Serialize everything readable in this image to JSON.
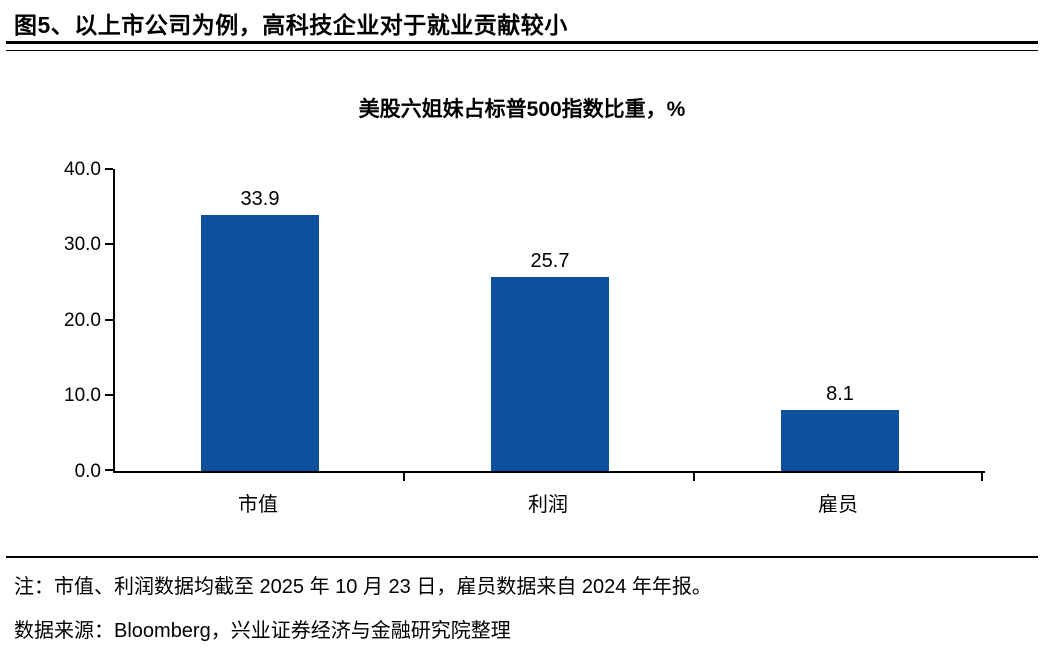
{
  "page": {
    "title": "图5、以上市公司为例，高科技企业对于就业贡献较小",
    "note": "注：市值、利润数据均截至 2025 年 10 月 23 日，雇员数据来自 2024 年年报。",
    "source": "数据来源：Bloomberg，兴业证券经济与金融研究院整理"
  },
  "chart_data": {
    "type": "bar",
    "title": "美股六姐妹占标普500指数比重，%",
    "categories": [
      "市值",
      "利润",
      "雇员"
    ],
    "values": [
      33.9,
      25.7,
      8.1
    ],
    "value_labels": [
      "33.9",
      "25.7",
      "8.1"
    ],
    "xlabel": "",
    "ylabel": "",
    "ylim": [
      0,
      40
    ],
    "yticks": [
      0,
      10,
      20,
      30,
      40
    ],
    "ytick_labels": [
      "0.0",
      "10.0",
      "20.0",
      "30.0",
      "40.0"
    ],
    "grid": false,
    "legend": "none",
    "bar_color": "#0D509E",
    "axis_color": "#000000",
    "text_color": "#000000"
  }
}
